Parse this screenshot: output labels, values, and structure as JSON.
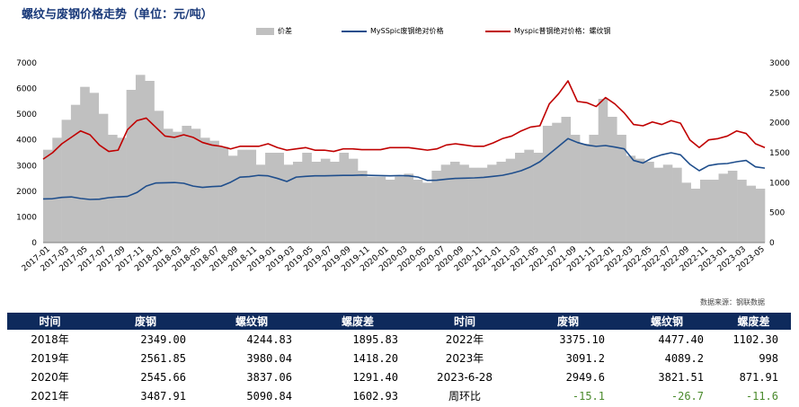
{
  "title": "螺纹与废钢价格走势（单位：元/吨）",
  "legend": {
    "volume": "价差",
    "scrap": "MySSpic废钢绝对价格",
    "rebar": "Myspic普钢绝对价格：螺纹钢"
  },
  "colors": {
    "volume": "#c0c0c0",
    "scrap": "#1f4e8c",
    "rebar": "#c00000",
    "header_bg": "#0e2a5c",
    "negative": "#4a8a2c"
  },
  "source": "数据来源：钢联数据",
  "chart_data": {
    "type": "bar+line",
    "title": "螺纹与废钢价格走势（单位：元/吨）",
    "left_axis": {
      "ylim": [
        0,
        7000
      ],
      "ticks": [
        "0",
        "1000",
        "2000",
        "3000",
        "4000",
        "5000",
        "6000",
        "7000"
      ]
    },
    "right_axis": {
      "ylim": [
        0,
        3000
      ],
      "ticks": [
        "0",
        "500",
        "1000",
        "1500",
        "2000",
        "2500",
        "3000"
      ]
    },
    "x_tick_labels": [
      "2017-01",
      "2017-03",
      "2017-05",
      "2017-07",
      "2017-09",
      "2017-11",
      "2018-01",
      "2018-03",
      "2018-05",
      "2018-07",
      "2018-09",
      "2018-11",
      "2019-01",
      "2019-03",
      "2019-05",
      "2019-07",
      "2019-09",
      "2019-11",
      "2020-01",
      "2020-03",
      "2020-05",
      "2020-07",
      "2020-09",
      "2020-11",
      "2021-01",
      "2021-03",
      "2021-05",
      "2021-07",
      "2021-09",
      "2021-11",
      "2022-01",
      "2022-03",
      "2022-05",
      "2022-07",
      "2022-09",
      "2022-11",
      "2023-01",
      "2023-03",
      "2023-05"
    ],
    "x_range": [
      "2017-01",
      "2023-06"
    ],
    "grid": false,
    "legend_position": "top",
    "series": [
      {
        "name": "价差",
        "type": "bar",
        "axis": "right",
        "values": [
          1550,
          1750,
          2050,
          2300,
          2600,
          2500,
          2150,
          1800,
          1750,
          2550,
          2800,
          2700,
          2200,
          1900,
          1850,
          1950,
          1900,
          1750,
          1700,
          1600,
          1450,
          1550,
          1550,
          1300,
          1500,
          1500,
          1300,
          1350,
          1500,
          1350,
          1400,
          1350,
          1500,
          1400,
          1200,
          1100,
          1100,
          1050,
          1100,
          1150,
          1050,
          1000,
          1200,
          1300,
          1350,
          1300,
          1250,
          1250,
          1300,
          1350,
          1400,
          1500,
          1550,
          1500,
          1950,
          2000,
          2100,
          1800,
          1650,
          1800,
          2400,
          2100,
          1800,
          1450,
          1400,
          1350,
          1250,
          1300,
          1250,
          1000,
          900,
          1050,
          1050,
          1150,
          1200,
          1050,
          950,
          900
        ]
      },
      {
        "name": "MySSpic废钢绝对价格",
        "type": "line",
        "axis": "left",
        "values": [
          1700,
          1710,
          1760,
          1780,
          1720,
          1680,
          1690,
          1750,
          1780,
          1800,
          1950,
          2200,
          2320,
          2330,
          2340,
          2310,
          2200,
          2150,
          2180,
          2200,
          2350,
          2550,
          2570,
          2620,
          2600,
          2500,
          2380,
          2550,
          2580,
          2600,
          2600,
          2610,
          2620,
          2620,
          2630,
          2620,
          2610,
          2600,
          2610,
          2600,
          2550,
          2420,
          2430,
          2470,
          2500,
          2510,
          2520,
          2540,
          2580,
          2620,
          2700,
          2800,
          2950,
          3150,
          3450,
          3750,
          4050,
          3900,
          3800,
          3750,
          3780,
          3720,
          3650,
          3200,
          3100,
          3300,
          3420,
          3500,
          3420,
          3050,
          2800,
          3000,
          3060,
          3080,
          3150,
          3200,
          2950,
          2900
        ]
      },
      {
        "name": "Myspic普钢绝对价格：螺纹钢",
        "type": "line",
        "axis": "left",
        "values": [
          3250,
          3500,
          3850,
          4100,
          4350,
          4200,
          3800,
          3550,
          3600,
          4400,
          4750,
          4850,
          4500,
          4150,
          4100,
          4200,
          4100,
          3900,
          3800,
          3750,
          3650,
          3750,
          3750,
          3750,
          3850,
          3700,
          3600,
          3650,
          3700,
          3600,
          3600,
          3550,
          3650,
          3650,
          3620,
          3620,
          3620,
          3700,
          3700,
          3700,
          3650,
          3600,
          3650,
          3800,
          3850,
          3800,
          3750,
          3750,
          3880,
          4050,
          4150,
          4350,
          4500,
          4550,
          5400,
          5800,
          6300,
          5500,
          5450,
          5300,
          5650,
          5400,
          5050,
          4600,
          4550,
          4700,
          4600,
          4750,
          4650,
          4000,
          3700,
          4000,
          4050,
          4150,
          4350,
          4250,
          3850,
          3700
        ]
      }
    ]
  },
  "table": {
    "headers": [
      "时间",
      "废钢",
      "螺纹钢",
      "螺废差",
      "时间",
      "废钢",
      "螺纹钢",
      "螺废差"
    ],
    "rows": [
      [
        "2018年",
        "2349.00",
        "4244.83",
        "1895.83",
        "2022年",
        "3375.10",
        "4477.40",
        "1102.30"
      ],
      [
        "2019年",
        "2561.85",
        "3980.04",
        "1418.20",
        "2023年",
        "3091.2",
        "4089.2",
        "998"
      ],
      [
        "2020年",
        "2545.66",
        "3837.06",
        "1291.40",
        "2023-6-28",
        "2949.6",
        "3821.51",
        "871.91"
      ],
      [
        "2021年",
        "3487.91",
        "5090.84",
        "1602.93",
        "周环比",
        "-15.1",
        "-26.7",
        "-11.6"
      ]
    ]
  }
}
